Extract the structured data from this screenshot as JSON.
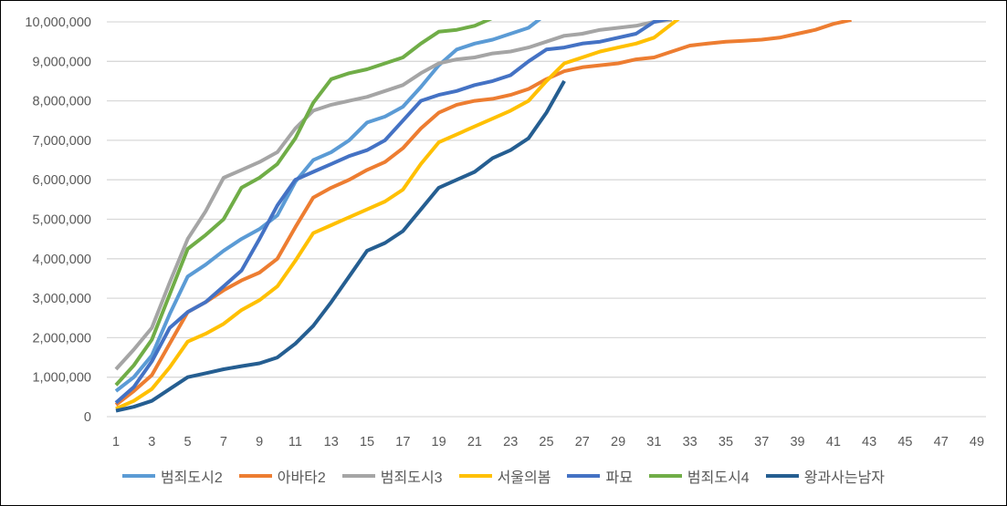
{
  "chart_data": {
    "type": "line",
    "title": "",
    "xlabel": "",
    "ylabel": "",
    "ylim": [
      0,
      10000000
    ],
    "xlim": [
      1,
      49
    ],
    "grid": true,
    "legend_position": "bottom",
    "y_ticks": [
      "0",
      "1,000,000",
      "2,000,000",
      "3,000,000",
      "4,000,000",
      "5,000,000",
      "6,000,000",
      "7,000,000",
      "8,000,000",
      "9,000,000",
      "10,000,000"
    ],
    "x_ticks": [
      "1",
      "3",
      "5",
      "7",
      "9",
      "11",
      "13",
      "15",
      "17",
      "19",
      "21",
      "23",
      "25",
      "27",
      "29",
      "31",
      "33",
      "35",
      "37",
      "39",
      "41",
      "43",
      "45",
      "47",
      "49"
    ],
    "series": [
      {
        "name": "범죄도시2",
        "color": "#5B9BD5",
        "values": [
          0.65,
          1.0,
          1.55,
          2.6,
          3.55,
          3.85,
          4.2,
          4.5,
          4.75,
          5.1,
          5.95,
          6.5,
          6.7,
          7.0,
          7.45,
          7.6,
          7.85,
          8.35,
          8.9,
          9.3,
          9.45,
          9.55,
          9.7,
          9.85,
          10.2
        ]
      },
      {
        "name": "아바타2",
        "color": "#ED7D31",
        "values": [
          0.3,
          0.65,
          1.05,
          1.85,
          2.65,
          2.9,
          3.2,
          3.45,
          3.65,
          4.0,
          4.8,
          5.55,
          5.8,
          6.0,
          6.25,
          6.45,
          6.8,
          7.3,
          7.7,
          7.9,
          8.0,
          8.05,
          8.15,
          8.3,
          8.55,
          8.75,
          8.85,
          8.9,
          8.95,
          9.05,
          9.1,
          9.25,
          9.4,
          9.45,
          9.5,
          9.52,
          9.55,
          9.6,
          9.7,
          9.8,
          9.95,
          10.05
        ]
      },
      {
        "name": "범죄도시3",
        "color": "#A5A5A5",
        "values": [
          1.2,
          1.7,
          2.25,
          3.4,
          4.5,
          5.2,
          6.05,
          6.25,
          6.45,
          6.7,
          7.3,
          7.75,
          7.9,
          8.0,
          8.1,
          8.25,
          8.4,
          8.7,
          8.95,
          9.05,
          9.1,
          9.2,
          9.25,
          9.35,
          9.5,
          9.65,
          9.7,
          9.8,
          9.85,
          9.9,
          10.0,
          10.05
        ]
      },
      {
        "name": "서울의봄",
        "color": "#FFC000",
        "values": [
          0.2,
          0.4,
          0.7,
          1.25,
          1.9,
          2.1,
          2.35,
          2.7,
          2.95,
          3.3,
          3.95,
          4.65,
          4.85,
          5.05,
          5.25,
          5.45,
          5.75,
          6.4,
          6.95,
          7.15,
          7.35,
          7.55,
          7.75,
          8.0,
          8.5,
          8.95,
          9.1,
          9.25,
          9.35,
          9.45,
          9.6,
          9.95,
          10.3
        ]
      },
      {
        "name": "파묘",
        "color": "#4472C4",
        "values": [
          0.35,
          0.75,
          1.4,
          2.25,
          2.65,
          2.9,
          3.3,
          3.7,
          4.5,
          5.35,
          6.0,
          6.2,
          6.4,
          6.6,
          6.75,
          7.0,
          7.5,
          8.0,
          8.15,
          8.25,
          8.4,
          8.5,
          8.65,
          9.0,
          9.3,
          9.35,
          9.45,
          9.5,
          9.6,
          9.7,
          10.0,
          10.1
        ]
      },
      {
        "name": "범죄도시4",
        "color": "#70AD47",
        "values": [
          0.8,
          1.3,
          1.95,
          3.1,
          4.25,
          4.6,
          5.0,
          5.8,
          6.05,
          6.4,
          7.05,
          7.95,
          8.55,
          8.7,
          8.8,
          8.95,
          9.1,
          9.45,
          9.75,
          9.8,
          9.9,
          10.1
        ]
      },
      {
        "name": "왕과사는남자",
        "color": "#255E91",
        "values": [
          0.15,
          0.25,
          0.4,
          0.7,
          1.0,
          1.1,
          1.2,
          1.28,
          1.35,
          1.5,
          1.85,
          2.3,
          2.9,
          3.55,
          4.2,
          4.4,
          4.7,
          5.25,
          5.8,
          6.0,
          6.2,
          6.55,
          6.75,
          7.05,
          7.7,
          8.5
        ]
      }
    ],
    "values_unit": "millions"
  }
}
